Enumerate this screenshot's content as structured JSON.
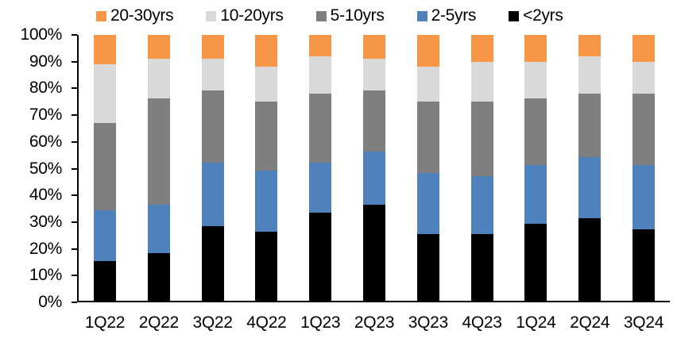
{
  "chart_data": {
    "type": "bar",
    "variant": "stacked-100-percent",
    "title": "",
    "xlabel": "",
    "ylabel": "",
    "ylim": [
      0,
      100
    ],
    "grid": false,
    "legend_position": "top",
    "y_ticks": [
      "100%",
      "90%",
      "80%",
      "70%",
      "60%",
      "50%",
      "40%",
      "30%",
      "20%",
      "10%",
      "0%"
    ],
    "categories": [
      "1Q22",
      "2Q22",
      "3Q22",
      "4Q22",
      "1Q23",
      "2Q23",
      "3Q23",
      "4Q23",
      "1Q24",
      "2Q24",
      "3Q24"
    ],
    "stack_order": "first series on top of stack",
    "series": [
      {
        "name": "20-30yrs",
        "color": "#F79646",
        "values": [
          11,
          9,
          9,
          12,
          8,
          9,
          12,
          10,
          10,
          8,
          10
        ]
      },
      {
        "name": "10-20yrs",
        "color": "#D9D9D9",
        "values": [
          22,
          15,
          12,
          13,
          14,
          12,
          13,
          15,
          14,
          14,
          12
        ]
      },
      {
        "name": "5-10yrs",
        "color": "#7F7F7F",
        "values": [
          33,
          40,
          27,
          26,
          26,
          23,
          27,
          28,
          25,
          24,
          27
        ]
      },
      {
        "name": "2-5yrs",
        "color": "#4F81BD",
        "values": [
          19,
          18,
          24,
          23,
          19,
          20,
          23,
          22,
          22,
          23,
          24
        ]
      },
      {
        "name": "<2yrs",
        "color": "#000000",
        "values": [
          15,
          18,
          28,
          26,
          33,
          36,
          25,
          25,
          29,
          31,
          27
        ]
      }
    ],
    "axis_color": "#000000",
    "label_color": "#000000"
  }
}
